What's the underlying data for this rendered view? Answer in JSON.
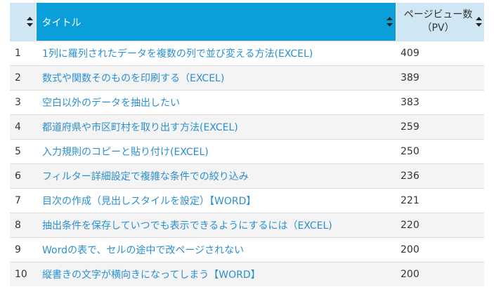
{
  "table": {
    "header": {
      "num": "",
      "title": "タイトル",
      "pv_line1": "ページビュー数",
      "pv_line2": "（PV）"
    },
    "rows": [
      {
        "rank": "1",
        "title": "1列に羅列されたデータを複数の列で並び変える方法(EXCEL)",
        "pv": "409"
      },
      {
        "rank": "2",
        "title": "数式や関数そのものを印刷する（EXCEL)",
        "pv": "389"
      },
      {
        "rank": "3",
        "title": "空白以外のデータを抽出したい",
        "pv": "383"
      },
      {
        "rank": "4",
        "title": "都道府県や市区町村を取り出す方法(EXCEL)",
        "pv": "259"
      },
      {
        "rank": "5",
        "title": "入力規則のコピーと貼り付け(EXCEL)",
        "pv": "250"
      },
      {
        "rank": "6",
        "title": "フィルター詳細設定で複雑な条件での絞り込み",
        "pv": "236"
      },
      {
        "rank": "7",
        "title": "目次の作成（見出しスタイルを設定）【WORD】",
        "pv": "221"
      },
      {
        "rank": "8",
        "title": "抽出条件を保存していつでも表示できるようにするには（EXCEL)",
        "pv": "220"
      },
      {
        "rank": "9",
        "title": "Wordの表で、セルの途中で改ページされない",
        "pv": "200"
      },
      {
        "rank": "10",
        "title": "縦書きの文字が横向きになってしまう【WORD】",
        "pv": "200"
      }
    ]
  },
  "colors": {
    "header_accent": "#0b9fd9",
    "header_light": "#cfe7f4",
    "link": "#2a8fcf",
    "stripe": "#f4f4f4"
  },
  "icons": {
    "sort": "sort-both-icon"
  }
}
